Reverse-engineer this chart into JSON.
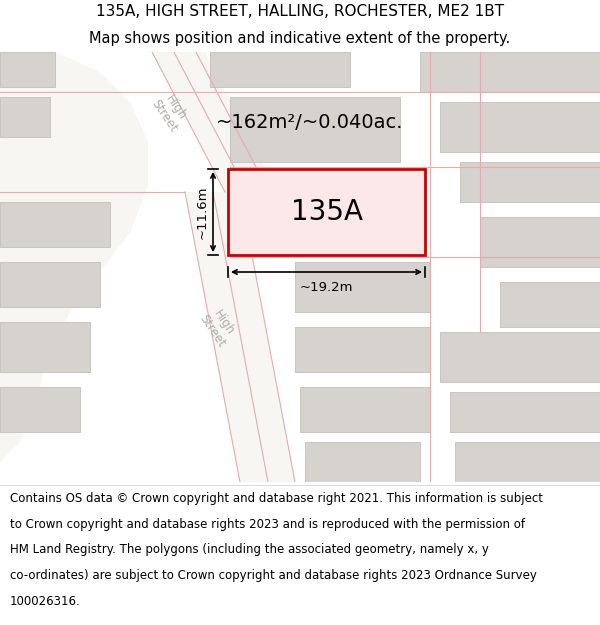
{
  "title_line1": "135A, HIGH STREET, HALLING, ROCHESTER, ME2 1BT",
  "title_line2": "Map shows position and indicative extent of the property.",
  "bg_color": "#edeae4",
  "map_bg": "#edeae4",
  "road_color": "#f8f6f3",
  "building_fill": "#d6d3ce",
  "building_stroke": "#c8c5c0",
  "highlight_fill": "#fce8e8",
  "highlight_stroke": "#cc0000",
  "road_label_color": "#b0aca6",
  "road_lines_color": "#e8aaaa",
  "area_text": "~162m²/~0.040ac.",
  "label_135A": "135A",
  "dim_width": "~19.2m",
  "dim_height": "~11.6m",
  "title_fontsize": 11,
  "footer_fontsize": 8.5,
  "footer_lines": [
    "Contains OS data © Crown copyright and database right 2021. This information is subject",
    "to Crown copyright and database rights 2023 and is reproduced with the permission of",
    "HM Land Registry. The polygons (including the associated geometry, namely x, y",
    "co-ordinates) are subject to Crown copyright and database rights 2023 Ordnance Survey",
    "100026316."
  ]
}
